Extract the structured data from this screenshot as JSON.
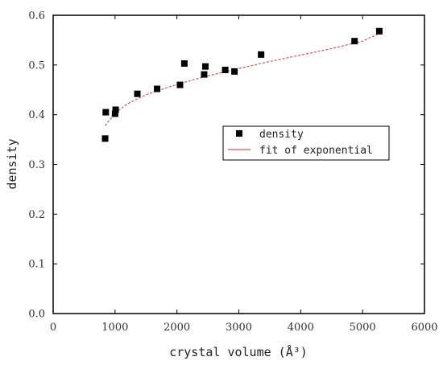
{
  "chart_data": {
    "type": "scatter",
    "xlabel": "crystal volume (Å³)",
    "ylabel": "density",
    "xlim": [
      0,
      6000
    ],
    "ylim": [
      0.0,
      0.6
    ],
    "xticks": [
      "0",
      "1000",
      "2000",
      "3000",
      "4000",
      "5000",
      "6000"
    ],
    "yticks": [
      "0.0",
      "0.1",
      "0.2",
      "0.3",
      "0.4",
      "0.5",
      "0.6"
    ],
    "grid": false,
    "legend": {
      "position": "center-right",
      "entries": [
        "density",
        "fit of exponential"
      ]
    },
    "series": [
      {
        "name": "density",
        "kind": "scatter",
        "color": "#000000",
        "points": [
          [
            840,
            0.352
          ],
          [
            850,
            0.405
          ],
          [
            1000,
            0.402
          ],
          [
            1010,
            0.41
          ],
          [
            1360,
            0.442
          ],
          [
            1680,
            0.452
          ],
          [
            2050,
            0.46
          ],
          [
            2120,
            0.503
          ],
          [
            2440,
            0.481
          ],
          [
            2460,
            0.497
          ],
          [
            2780,
            0.49
          ],
          [
            2930,
            0.487
          ],
          [
            3360,
            0.521
          ],
          [
            4870,
            0.548
          ],
          [
            5270,
            0.568
          ]
        ]
      },
      {
        "name": "fit of exponential",
        "kind": "line",
        "color": "#d9534f",
        "points": [
          [
            840,
            0.378
          ],
          [
            1000,
            0.403
          ],
          [
            1200,
            0.422
          ],
          [
            1500,
            0.44
          ],
          [
            2000,
            0.461
          ],
          [
            2500,
            0.478
          ],
          [
            3000,
            0.493
          ],
          [
            3500,
            0.507
          ],
          [
            4000,
            0.52
          ],
          [
            4500,
            0.533
          ],
          [
            5000,
            0.548
          ],
          [
            5300,
            0.565
          ]
        ]
      }
    ]
  }
}
